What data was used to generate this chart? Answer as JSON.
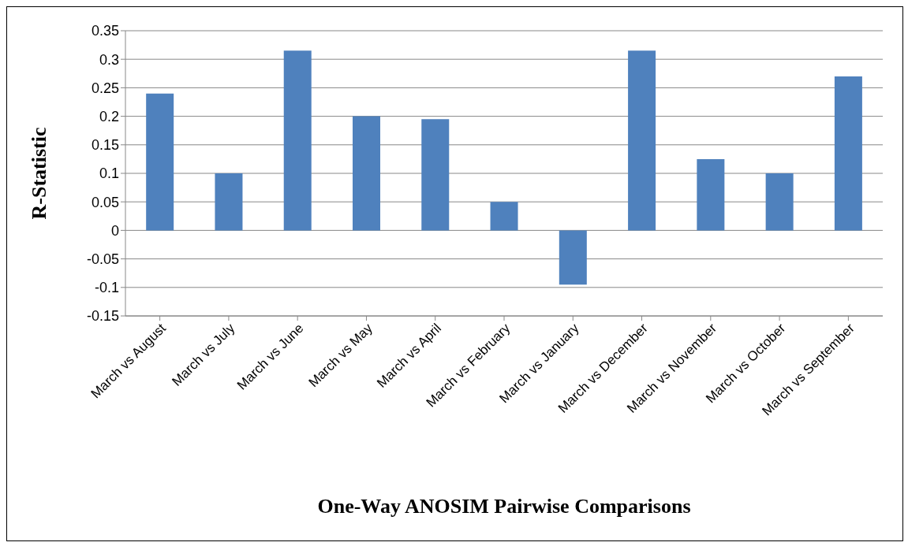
{
  "chart_data": {
    "type": "bar",
    "xlabel": "One-Way ANOSIM Pairwise Comparisons",
    "ylabel": "R-Statistic",
    "categories": [
      "March vs August",
      "March vs July",
      "March vs June",
      "March vs May",
      "March vs April",
      "March vs February",
      "March vs January",
      "March vs December",
      "March vs November",
      "March vs October",
      "March vs September"
    ],
    "values": [
      0.24,
      0.1,
      0.315,
      0.2,
      0.195,
      0.05,
      -0.095,
      0.315,
      0.125,
      0.1,
      0.27
    ],
    "color": "#4f81bd",
    "ylim": [
      -0.15,
      0.35
    ],
    "yticks": [
      -0.15,
      -0.1,
      -0.05,
      0,
      0.05,
      0.1,
      0.15,
      0.2,
      0.25,
      0.3,
      0.35
    ],
    "grid": "y"
  }
}
